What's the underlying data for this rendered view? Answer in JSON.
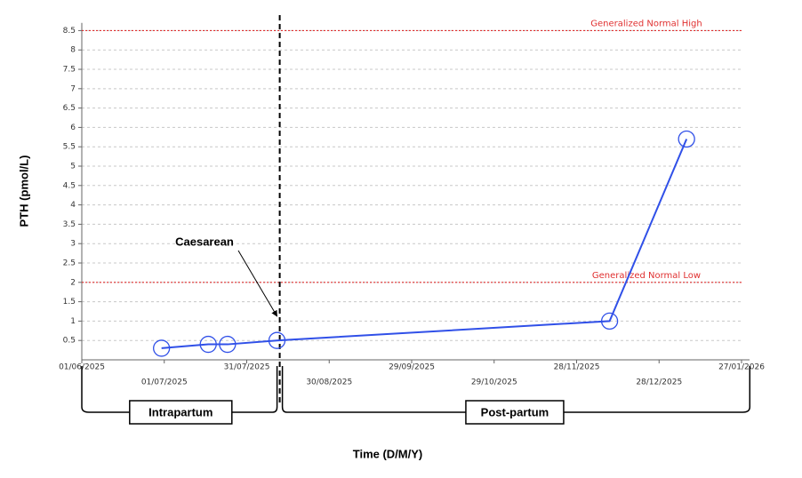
{
  "chart_data": {
    "type": "line",
    "y_label": "PTH (pmol/L)",
    "x_label": "Time (D/M/Y)",
    "x": [
      "2025-06-30",
      "2025-07-17",
      "2025-07-24",
      "2025-08-11",
      "2025-12-10",
      "2026-01-07"
    ],
    "values": [
      0.3,
      0.4,
      0.4,
      0.5,
      1.0,
      5.7
    ],
    "color": "#3050e8",
    "xlim": [
      "2025-06-01",
      "2026-01-27"
    ],
    "xticks": [
      {
        "value": "2025-06-01",
        "label": "01/06/2025"
      },
      {
        "value": "2025-07-01",
        "label": "01/07/2025"
      },
      {
        "value": "2025-07-31",
        "label": "31/07/2025"
      },
      {
        "value": "2025-08-30",
        "label": "30/08/2025"
      },
      {
        "value": "2025-09-29",
        "label": "29/09/2025"
      },
      {
        "value": "2025-10-29",
        "label": "29/10/2025"
      },
      {
        "value": "2025-11-28",
        "label": "28/11/2025"
      },
      {
        "value": "2025-12-28",
        "label": "28/12/2025"
      },
      {
        "value": "2026-01-27",
        "label": "27/01/2026"
      }
    ],
    "ylim": [
      0,
      8.7
    ],
    "yticks": [
      0.5,
      1,
      1.5,
      2,
      2.5,
      3,
      3.5,
      4,
      4.5,
      5,
      5.5,
      6,
      6.5,
      7,
      7.5,
      8,
      8.5
    ],
    "grid": true,
    "reference_lines": [
      {
        "value": 8.5,
        "label": "Generalized Normal High",
        "color": "#e03030"
      },
      {
        "value": 2,
        "label": "Generalized Normal Low",
        "color": "#e03030"
      }
    ],
    "annotation": {
      "text": "Caesarean",
      "x": "2025-08-12"
    },
    "phases": [
      {
        "label": "Intrapartum",
        "start": "2025-06-01",
        "end": "2025-08-12"
      },
      {
        "label": "Post-partum",
        "start": "2025-08-12",
        "end": "2026-01-30"
      }
    ]
  }
}
